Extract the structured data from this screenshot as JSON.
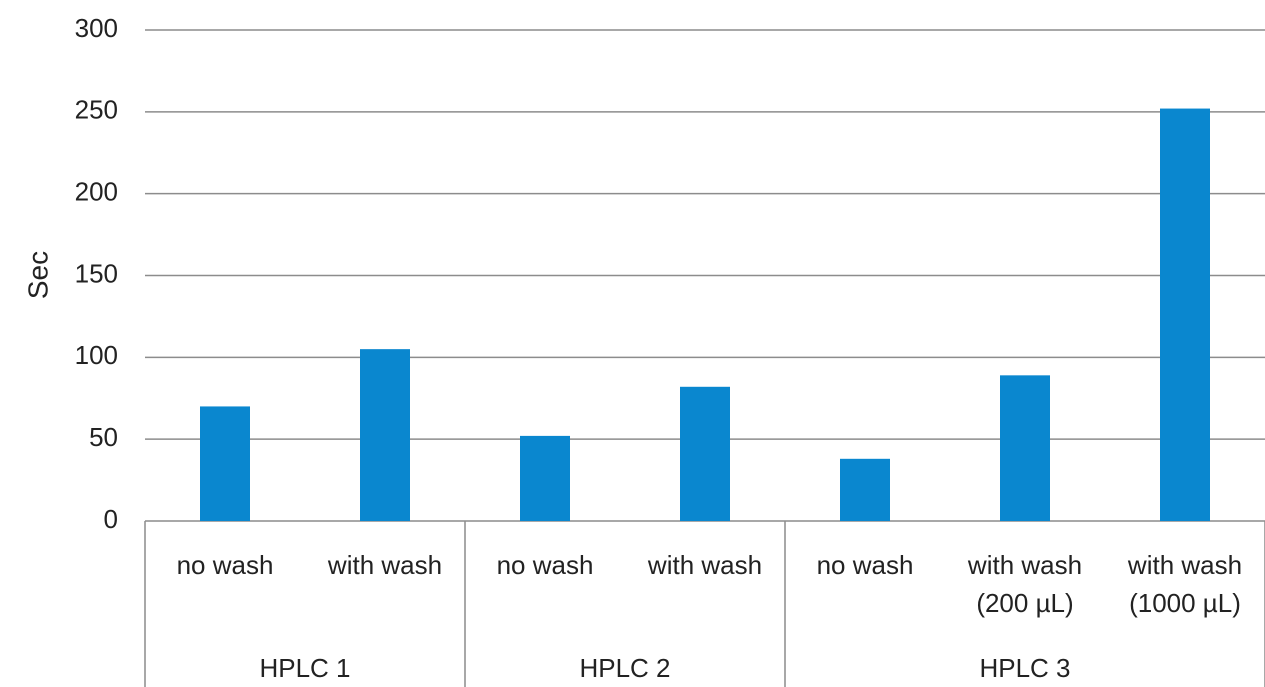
{
  "chart_data": {
    "type": "bar",
    "y_label": "Sec",
    "color": "#0a87cf",
    "groups": [
      {
        "name": "HPLC 1",
        "categories": [
          "no wash",
          "with wash"
        ],
        "values": [
          70,
          105
        ]
      },
      {
        "name": "HPLC 2",
        "categories": [
          "no wash",
          "with wash"
        ],
        "values": [
          52,
          82
        ]
      },
      {
        "name": "HPLC 3",
        "categories": [
          "no wash",
          "with wash (200 µL)",
          "with wash (1000 µL)"
        ],
        "values": [
          38,
          89,
          252
        ]
      }
    ],
    "ylim": [
      0,
      300
    ],
    "yticks": [
      0,
      50,
      100,
      150,
      200,
      250,
      300
    ],
    "grid": true
  }
}
